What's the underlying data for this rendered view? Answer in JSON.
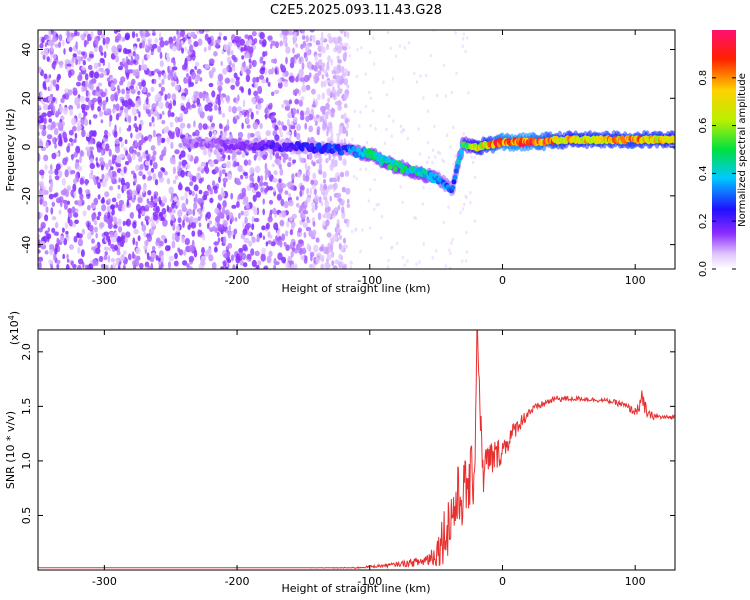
{
  "title": "C2E5.2025.093.11.43.G28",
  "colors": {
    "snr_line": "#e83030",
    "scatter_low": "#e6d6ff",
    "scatter_high": "#5a00e0"
  },
  "chart_data": [
    {
      "type": "heatmap",
      "xlabel": "Height of straight line (km)",
      "ylabel": "Frequency (Hz)",
      "xlim": [
        -350,
        130
      ],
      "ylim": [
        -50,
        48
      ],
      "x_ticks": [
        "-300",
        "-200",
        "-100",
        "0",
        "100"
      ],
      "x_tick_values": [
        -300,
        -200,
        -100,
        0,
        100
      ],
      "y_ticks": [
        "-40",
        "-20",
        "0",
        "20",
        "40"
      ],
      "y_tick_values": [
        -40,
        -20,
        0,
        20,
        40
      ],
      "colorbar": {
        "label": "Normalized spectral amplitude",
        "range": [
          0,
          1
        ],
        "ticks": [
          "0.0",
          "0.2",
          "0.4",
          "0.6",
          "0.8"
        ],
        "tick_values": [
          0.0,
          0.2,
          0.4,
          0.6,
          0.8
        ],
        "colormap": "rainbow (white-violet-blue-cyan-green-yellow-red-magenta)"
      },
      "noise_region": {
        "x": [
          -350,
          -120
        ],
        "y": [
          -50,
          48
        ]
      },
      "signal_track": {
        "x": [
          -240,
          -200,
          -150,
          -120,
          -100,
          -80,
          -60,
          -45,
          -38,
          -30,
          -20,
          -10,
          0,
          20,
          50,
          80,
          100,
          130
        ],
        "frequency": [
          2,
          1,
          0,
          -1,
          -3,
          -8,
          -11,
          -14,
          -18,
          1,
          0,
          1,
          2,
          2,
          3,
          3,
          3,
          3
        ],
        "amplitude": [
          0.12,
          0.15,
          0.25,
          0.3,
          0.45,
          0.5,
          0.45,
          0.35,
          0.3,
          0.5,
          0.7,
          0.8,
          0.95,
          0.95,
          0.75,
          0.8,
          0.8,
          0.75
        ]
      }
    },
    {
      "type": "line",
      "xlabel": "Height of straight line (km)",
      "ylabel": "SNR (10 * v/v)",
      "y_scale_label": "(x10",
      "y_scale_exponent": "4",
      "y_scale_suffix": ")",
      "xlim": [
        -350,
        130
      ],
      "ylim": [
        0,
        2.2
      ],
      "x_ticks": [
        "-300",
        "-200",
        "-100",
        "0",
        "100"
      ],
      "x_tick_values": [
        -300,
        -200,
        -100,
        0,
        100
      ],
      "y_ticks": [
        "0.5",
        "1.0",
        "1.5",
        "2.0"
      ],
      "y_tick_values": [
        0.5,
        1.0,
        1.5,
        2.0
      ],
      "series": [
        {
          "x": [
            -350,
            -300,
            -250,
            -200,
            -150,
            -110,
            -100,
            -80,
            -60,
            -50,
            -45,
            -40,
            -35,
            -30,
            -25,
            -21,
            -19,
            -15,
            -10,
            -5,
            0,
            10,
            20,
            30,
            40,
            60,
            80,
            90,
            100,
            105,
            110,
            120,
            130
          ],
          "values": [
            0.02,
            0.02,
            0.02,
            0.02,
            0.02,
            0.02,
            0.03,
            0.05,
            0.08,
            0.15,
            0.3,
            0.45,
            0.6,
            0.7,
            0.8,
            0.9,
            2.2,
            0.9,
            1.0,
            1.05,
            1.1,
            1.3,
            1.45,
            1.52,
            1.57,
            1.57,
            1.55,
            1.52,
            1.45,
            1.55,
            1.42,
            1.4,
            1.4
          ],
          "spread": [
            0.0,
            0.0,
            0.0,
            0.0,
            0.0,
            0.005,
            0.01,
            0.02,
            0.05,
            0.12,
            0.25,
            0.3,
            0.35,
            0.3,
            0.3,
            0.3,
            0.0,
            0.25,
            0.2,
            0.15,
            0.12,
            0.08,
            0.05,
            0.03,
            0.03,
            0.02,
            0.02,
            0.03,
            0.04,
            0.1,
            0.04,
            0.02,
            0.02
          ]
        }
      ]
    }
  ]
}
